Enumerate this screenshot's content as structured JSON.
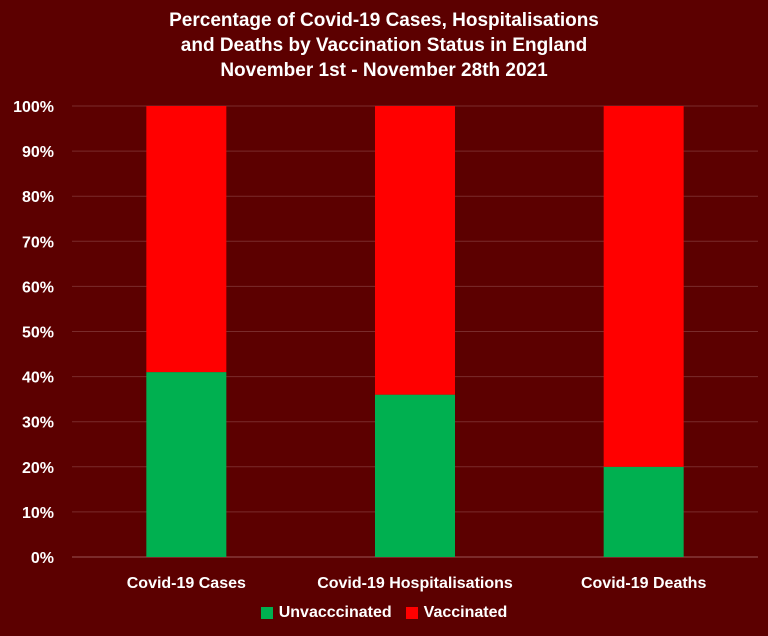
{
  "title_lines": [
    "Percentage of Covid-19 Cases, Hospitalisations",
    "and Deaths by Vaccination Status in England",
    "November 1st - November 28th 2021"
  ],
  "colors": {
    "background": "#5c0000",
    "unvaccinated": "#00b050",
    "vaccinated": "#ff0000",
    "grid": "#7a2b2b",
    "axis": "#9a5555"
  },
  "chart_data": {
    "type": "bar",
    "stacked": true,
    "percent": true,
    "title": "Percentage of Covid-19 Cases, Hospitalisations and Deaths by Vaccination Status in England November 1st - November 28th 2021",
    "categories": [
      "Covid-19 Cases",
      "Covid-19 Hospitalisations",
      "Covid-19 Deaths"
    ],
    "series": [
      {
        "name": "Unvacccinated",
        "values": [
          41,
          36,
          20
        ]
      },
      {
        "name": "Vaccinated",
        "values": [
          59,
          64,
          80
        ]
      }
    ],
    "ylim": [
      0,
      100
    ],
    "yticks": [
      "0%",
      "10%",
      "20%",
      "30%",
      "40%",
      "50%",
      "60%",
      "70%",
      "80%",
      "90%",
      "100%"
    ],
    "xlabel": "",
    "ylabel": "",
    "grid": true,
    "legend_position": "bottom"
  }
}
